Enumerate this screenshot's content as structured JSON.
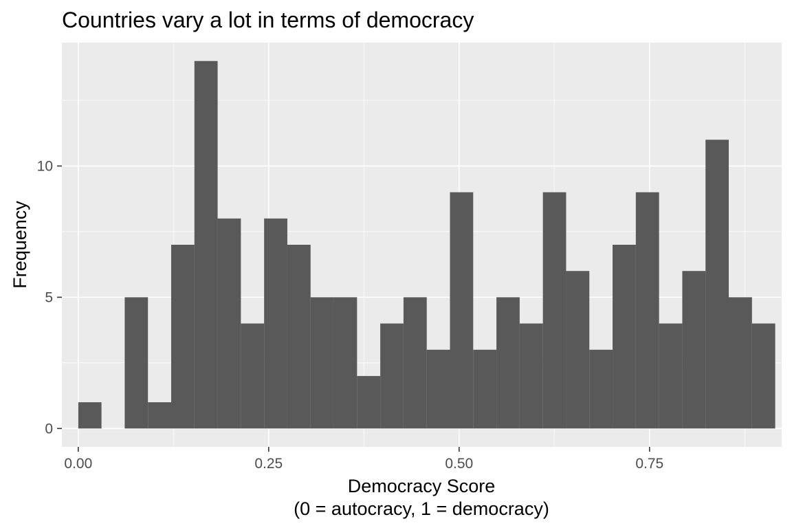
{
  "chart_data": {
    "type": "bar",
    "subtype": "histogram",
    "title": "Countries vary a lot in terms of democracy",
    "xlabel": "Democracy Score",
    "xlabel_line2": "(0 = autocracy, 1 = democracy)",
    "ylabel": "Frequency",
    "xlim": [
      -0.0215,
      0.9235
    ],
    "ylim": [
      -0.7,
      14.7
    ],
    "x_ticks": [
      0,
      0.25,
      0.5,
      0.75
    ],
    "x_tick_labels": [
      "0.00",
      "0.25",
      "0.50",
      "0.75"
    ],
    "y_ticks": [
      0,
      5,
      10
    ],
    "y_tick_labels": [
      "0",
      "5",
      "10"
    ],
    "bin_width": 0.0305,
    "bin_starts": [
      0.0,
      0.0305,
      0.061,
      0.0915,
      0.122,
      0.1525,
      0.183,
      0.2135,
      0.244,
      0.2745,
      0.305,
      0.3355,
      0.366,
      0.3965,
      0.427,
      0.4575,
      0.488,
      0.5185,
      0.549,
      0.5795,
      0.61,
      0.6405,
      0.671,
      0.7015,
      0.732,
      0.7625,
      0.793,
      0.8235,
      0.854,
      0.8845
    ],
    "counts": [
      1,
      0,
      5,
      1,
      7,
      14,
      8,
      4,
      8,
      7,
      5,
      5,
      2,
      4,
      5,
      3,
      9,
      3,
      5,
      4,
      9,
      6,
      3,
      7,
      9,
      4,
      6,
      11,
      5,
      4
    ],
    "grid": true,
    "colors": {
      "panel": "#ebebeb",
      "grid_major": "#ffffff",
      "bar": "#595959",
      "tick": "#333333"
    }
  }
}
